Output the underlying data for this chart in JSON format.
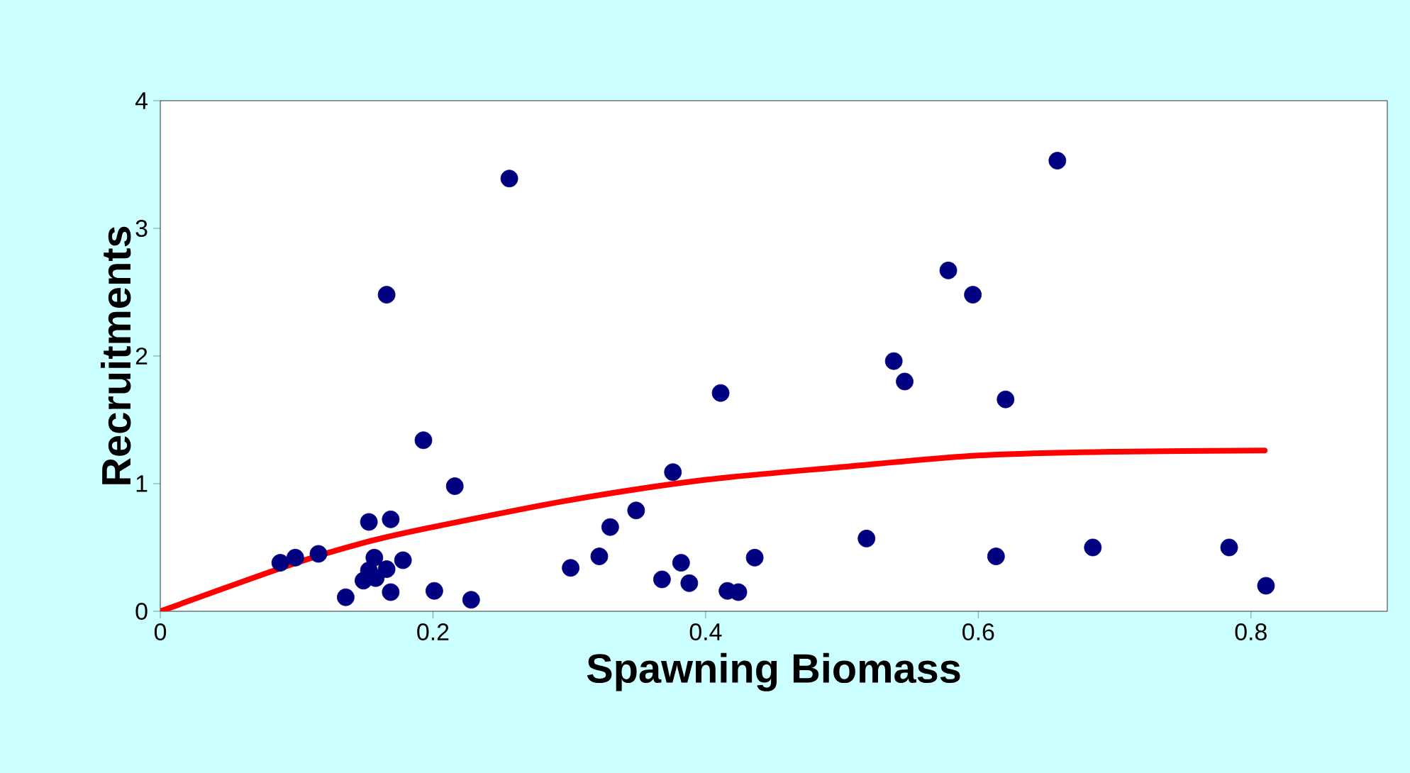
{
  "chart_data": {
    "type": "scatter",
    "xlabel": "Spawning Biomass",
    "ylabel": "Recruitments",
    "xlim": [
      0,
      0.9
    ],
    "ylim": [
      0,
      4
    ],
    "xticks": [
      0,
      0.2,
      0.4,
      0.6,
      0.8
    ],
    "yticks": [
      0,
      1,
      2,
      3,
      4
    ],
    "grid": false,
    "series": [
      {
        "color": "#000080",
        "marker": "circle",
        "x": [
          0.088,
          0.099,
          0.116,
          0.136,
          0.153,
          0.169,
          0.166,
          0.157,
          0.153,
          0.149,
          0.158,
          0.166,
          0.178,
          0.169,
          0.193,
          0.201,
          0.216,
          0.228,
          0.256,
          0.301,
          0.322,
          0.33,
          0.349,
          0.368,
          0.376,
          0.382,
          0.388,
          0.411,
          0.416,
          0.424,
          0.436,
          0.518,
          0.538,
          0.546,
          0.578,
          0.596,
          0.62,
          0.613,
          0.658,
          0.684,
          0.784,
          0.811
        ],
        "values": [
          0.38,
          0.42,
          0.45,
          0.11,
          0.7,
          0.72,
          2.48,
          0.42,
          0.32,
          0.24,
          0.26,
          0.33,
          0.4,
          0.15,
          1.34,
          0.16,
          0.98,
          0.09,
          3.39,
          0.34,
          0.43,
          0.66,
          0.79,
          0.25,
          1.09,
          0.38,
          0.22,
          1.71,
          0.16,
          0.15,
          0.42,
          0.57,
          1.96,
          1.8,
          2.67,
          2.48,
          1.66,
          0.43,
          3.53,
          0.5,
          0.5,
          0.2
        ]
      },
      {
        "type": "line",
        "color": "#ff0000",
        "marker": "none",
        "x": [
          0,
          0.1,
          0.154,
          0.2,
          0.3,
          0.4,
          0.5,
          0.6,
          0.7,
          0.81
        ],
        "values": [
          0,
          0.38,
          0.55,
          0.66,
          0.87,
          1.03,
          1.13,
          1.22,
          1.25,
          1.26
        ]
      }
    ]
  }
}
